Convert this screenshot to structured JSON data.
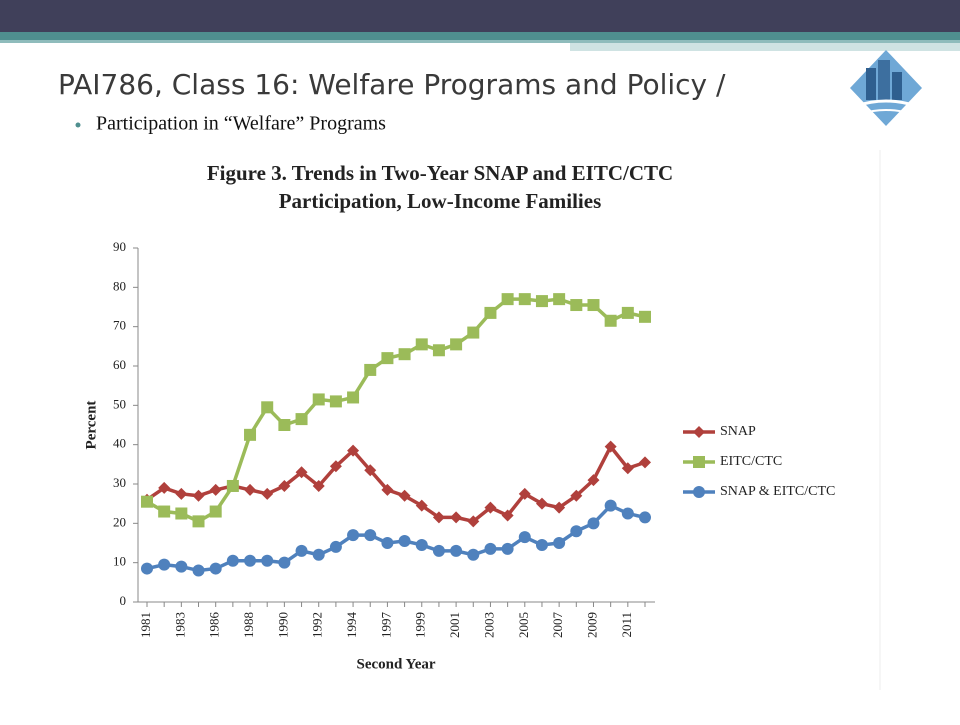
{
  "slide": {
    "title": "PAI786, Class 16: Welfare Programs and Policy  /",
    "bullet": "Participation in “Welfare” Programs"
  },
  "chart_data": {
    "type": "line",
    "title_lines": [
      "Figure 3.  Trends in Two-Year SNAP and EITC/CTC",
      "Participation, Low-Income Families"
    ],
    "y_label": "Percent",
    "x_label": "Second Year",
    "categories": [
      "1981",
      null,
      "1983",
      null,
      "1986",
      null,
      "1988",
      null,
      "1990",
      null,
      "1992",
      null,
      "1994",
      null,
      "1997",
      null,
      "1999",
      null,
      "2001",
      null,
      "2003",
      null,
      "2005",
      null,
      "2007",
      null,
      "2009",
      null,
      "2011",
      null
    ],
    "ylim": [
      0,
      90
    ],
    "yticks": [
      0,
      10,
      20,
      30,
      40,
      50,
      60,
      70,
      80,
      90
    ],
    "legend": "right",
    "series": [
      {
        "name": "SNAP",
        "color": "#b0403c",
        "marker": "diamond",
        "values": [
          26,
          29,
          27.5,
          27,
          28.5,
          29.5,
          28.5,
          27.5,
          29.5,
          33,
          29.5,
          34.5,
          38.5,
          33.5,
          28.5,
          27,
          24.5,
          21.5,
          21.5,
          20.5,
          24,
          22,
          27.5,
          25,
          24,
          27,
          31,
          39.5,
          34,
          35.5
        ]
      },
      {
        "name": "EITC/CTC",
        "color": "#9bbb59",
        "marker": "square",
        "values": [
          25.5,
          23,
          22.5,
          20.5,
          23,
          29.5,
          42.5,
          49.5,
          45,
          46.5,
          51.5,
          51,
          52,
          59,
          62,
          63,
          65.5,
          64,
          65.5,
          68.5,
          73.5,
          77,
          77,
          76.5,
          77,
          75.5,
          75.5,
          71.5,
          73.5,
          72.5
        ]
      },
      {
        "name": "SNAP & EITC/CTC",
        "color": "#4f81bd",
        "marker": "circle",
        "values": [
          8.5,
          9.5,
          9,
          8,
          8.5,
          10.5,
          10.5,
          10.5,
          10,
          13,
          12,
          14,
          17,
          17,
          15,
          15.5,
          14.5,
          13,
          13,
          12,
          13.5,
          13.5,
          16.5,
          14.5,
          15,
          18,
          20,
          24.5,
          22.5,
          21.5
        ]
      }
    ]
  }
}
